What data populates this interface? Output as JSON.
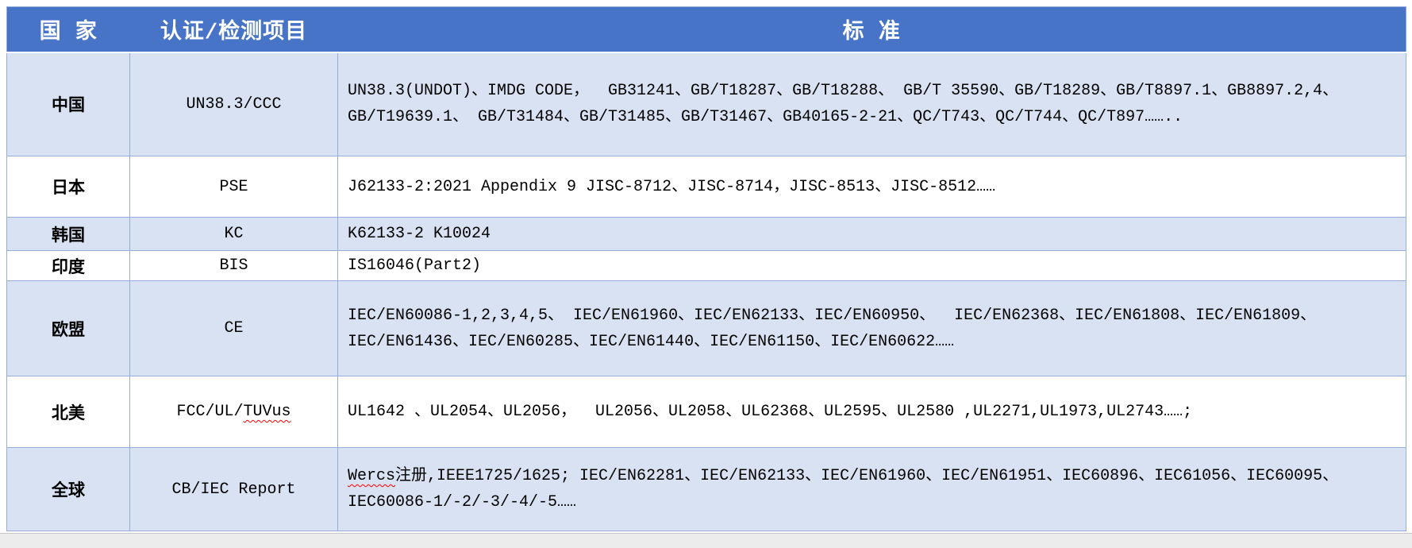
{
  "header": {
    "columns": [
      "国 家",
      "认证/检测项目",
      "标 准"
    ]
  },
  "colors": {
    "header_bg": "#4874C8",
    "header_text": "#FFFFFF",
    "band_bg": "#D9E2F3",
    "grid": "#95ADD9",
    "text": "#000000",
    "squiggle": "#FF0000"
  },
  "rows": [
    {
      "country": "中国",
      "shaded": true,
      "cert": [
        {
          "text": "UN38.3/CCC"
        }
      ],
      "standard_lines": [
        [
          {
            "text": "UN38.3(UNDOT)、IMDG CODE，  GB31241、GB/T18287、GB/T18288、 GB/T 35590、GB/T18289、GB/T8897.1、GB8897.2,4、"
          }
        ],
        [
          {
            "text": "GB/T19639.1、 GB/T31484、GB/T31485、GB/T31467、GB40165-2-21、QC/T743、QC/T744、QC/T897…….."
          }
        ]
      ]
    },
    {
      "country": "日本",
      "shaded": false,
      "cert": [
        {
          "text": "PSE"
        }
      ],
      "standard_lines": [
        [
          {
            "text": "J62133-2:2021 Appendix 9 JISC-8712、JISC-8714，JISC-8513、JISC-8512……"
          }
        ]
      ]
    },
    {
      "country": "韩国",
      "shaded": true,
      "cert": [
        {
          "text": "KC"
        }
      ],
      "standard_lines": [
        [
          {
            "text": "K62133-2 K10024"
          }
        ]
      ]
    },
    {
      "country": "印度",
      "shaded": false,
      "cert": [
        {
          "text": "BIS"
        }
      ],
      "standard_lines": [
        [
          {
            "text": "IS16046(Part2)"
          }
        ]
      ]
    },
    {
      "country": "欧盟",
      "shaded": true,
      "cert": [
        {
          "text": "CE"
        }
      ],
      "standard_lines": [
        [
          {
            "text": "IEC/EN60086-1,2,3,4,5、 IEC/EN61960、IEC/EN62133、IEC/EN60950、  IEC/EN62368、IEC/EN61808、IEC/EN61809、"
          }
        ],
        [
          {
            "text": "IEC/EN61436、IEC/EN60285、IEC/EN61440、IEC/EN61150、IEC/EN60622……"
          }
        ]
      ]
    },
    {
      "country": "北美",
      "shaded": false,
      "cert": [
        {
          "text": "FCC/UL/"
        },
        {
          "text": "TUVus",
          "wavy": true
        }
      ],
      "standard_lines": [
        [
          {
            "text": "UL1642 、UL2054、UL2056，  UL2056、UL2058、UL62368、UL2595、UL2580 ,UL2271,UL1973,UL2743……;"
          }
        ]
      ]
    },
    {
      "country": "全球",
      "shaded": true,
      "cert": [
        {
          "text": "CB/IEC Report"
        }
      ],
      "standard_lines": [
        [
          {
            "text": "Wercs",
            "wavy": true
          },
          {
            "text": "注册,IEEE1725/1625; IEC/EN62281、IEC/EN62133、IEC/EN61960、IEC/EN61951、IEC60896、IEC61056、IEC60095、"
          }
        ],
        [
          {
            "text": "IEC60086-1/-2/-3/-4/-5……"
          }
        ]
      ]
    }
  ]
}
